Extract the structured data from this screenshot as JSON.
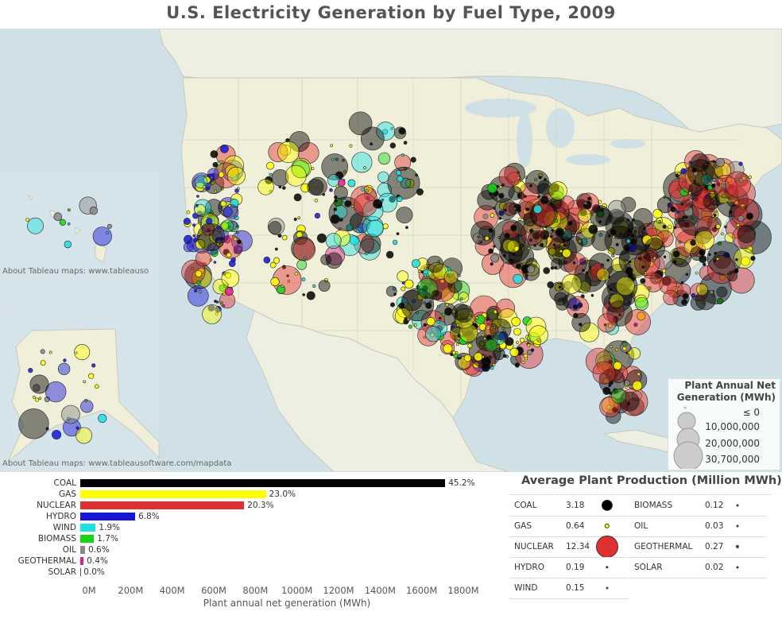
{
  "title": "U.S. Electricity Generation by Fuel Type, 2009",
  "map": {
    "attribution_hawaii": "About Tableau maps: www.tableauso",
    "attribution_alaska": "About Tableau maps: www.tableausoftware.com/mapdata",
    "colors": {
      "COAL": "#000000",
      "GAS": "#ffff00",
      "NUCLEAR": "#e03030",
      "HYDRO": "#1515d8",
      "WIND": "#1fe0e0",
      "BIOMASS": "#15d615",
      "OIL": "#888888",
      "GEOTHERMAL": "#e0208a",
      "SOLAR": "#555555"
    },
    "legend": {
      "title": "Plant Annual Net Generation (MWh)",
      "items": [
        "≤ 0",
        "10,000,000",
        "20,000,000",
        "30,700,000"
      ]
    }
  },
  "chart_data": {
    "type": "bar",
    "orientation": "horizontal",
    "categories": [
      "COAL",
      "GAS",
      "NUCLEAR",
      "HYDRO",
      "WIND",
      "BIOMASS",
      "OIL",
      "GEOTHERMAL",
      "SOLAR"
    ],
    "values_percent": [
      45.2,
      23.0,
      20.3,
      6.8,
      1.9,
      1.7,
      0.6,
      0.4,
      0.0
    ],
    "value_labels": [
      "45.2%",
      "23.0%",
      "20.3%",
      "6.8%",
      "1.9%",
      "1.7%",
      "0.6%",
      "0.4%",
      "0.0%"
    ],
    "approx_values_mwh": [
      1755000000,
      893000000,
      788000000,
      264000000,
      74000000,
      66000000,
      23000000,
      16000000,
      800000
    ],
    "xlim": [
      0,
      1900000000
    ],
    "x_ticks": [
      "0M",
      "200M",
      "400M",
      "600M",
      "800M",
      "1000M",
      "1200M",
      "1400M",
      "1600M",
      "1800M"
    ],
    "xlabel": "Plant annual net generation (MWh)"
  },
  "average_production": {
    "title": "Average Plant Production (Million MWh)",
    "left": [
      {
        "name": "COAL",
        "value": "3.18",
        "v": 3.18
      },
      {
        "name": "GAS",
        "value": "0.64",
        "v": 0.64
      },
      {
        "name": "NUCLEAR",
        "value": "12.34",
        "v": 12.34
      },
      {
        "name": "HYDRO",
        "value": "0.19",
        "v": 0.19
      },
      {
        "name": "WIND",
        "value": "0.15",
        "v": 0.15
      }
    ],
    "right": [
      {
        "name": "BIOMASS",
        "value": "0.12",
        "v": 0.12
      },
      {
        "name": "OIL",
        "value": "0.03",
        "v": 0.03
      },
      {
        "name": "GEOTHERMAL",
        "value": "0.27",
        "v": 0.27
      },
      {
        "name": "SOLAR",
        "value": "0.02",
        "v": 0.02
      }
    ]
  }
}
